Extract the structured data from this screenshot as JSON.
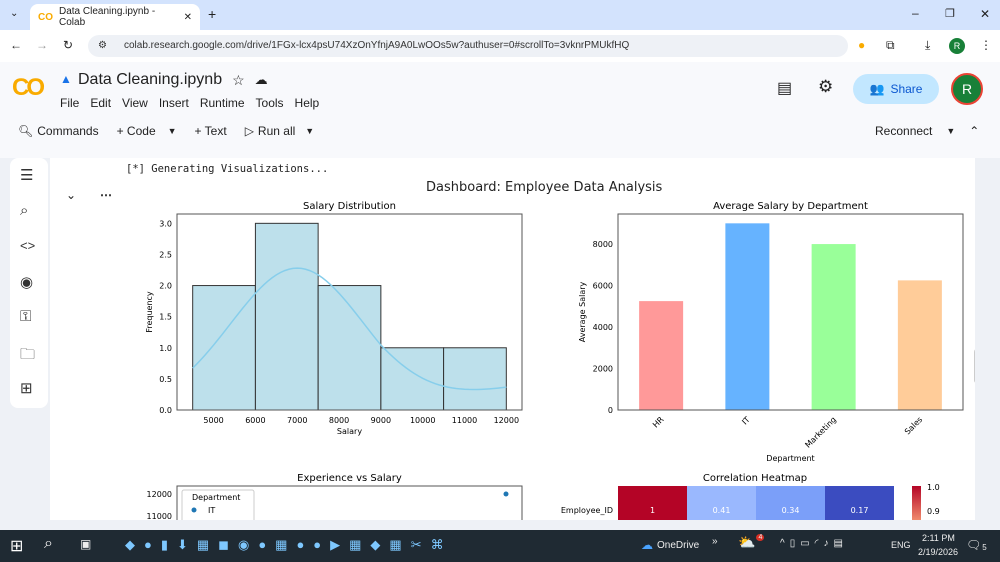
{
  "browser": {
    "tab_title": "Data Cleaning.ipynb - Colab",
    "url": "colab.research.google.com/drive/1FGx-lcx4psU74XzOnYfnjA9A0LwOOs5w?authuser=0#scrollTo=3vknrPMUkfHQ",
    "profile": "R"
  },
  "colab": {
    "notebook_title": "Data Cleaning.ipynb",
    "menu": [
      "File",
      "Edit",
      "View",
      "Insert",
      "Runtime",
      "Tools",
      "Help"
    ],
    "share": "Share",
    "avatar": "R",
    "toolbar": {
      "commands": "Commands",
      "code": "+ Code",
      "text": "+ Text",
      "run_all": "Run all",
      "reconnect": "Reconnect"
    },
    "sidebar_icons": [
      "toc-icon",
      "find-icon",
      "code-snippets-icon",
      "variables-icon",
      "secrets-key-icon",
      "files-folder-icon",
      "data-table-icon"
    ]
  },
  "output": {
    "log": "[*] Generating Visualizations...",
    "suptitle": "Dashboard: Employee Data Analysis"
  },
  "chart_data": [
    {
      "type": "bar",
      "subtype": "histogram",
      "title": "Salary Distribution",
      "xlabel": "Salary",
      "ylabel": "Frequency",
      "bins": [
        [
          4500,
          6000
        ],
        [
          6000,
          7500
        ],
        [
          7500,
          9000
        ],
        [
          9000,
          10500
        ],
        [
          10500,
          12000
        ]
      ],
      "values": [
        2,
        3,
        2,
        1,
        1
      ],
      "kde": true,
      "xticks": [
        5000,
        6000,
        7000,
        8000,
        9000,
        10000,
        11000,
        12000
      ],
      "yticks": [
        "0.0",
        "0.5",
        "1.0",
        "1.5",
        "2.0",
        "2.5",
        "3.0"
      ],
      "xlim": [
        4125,
        12375
      ],
      "ylim": [
        0,
        3.15
      ],
      "color": "#add8e6"
    },
    {
      "type": "bar",
      "title": "Average Salary by Department",
      "xlabel": "Department",
      "ylabel": "Average Salary",
      "categories": [
        "HR",
        "IT",
        "Marketing",
        "Sales"
      ],
      "values": [
        5250,
        9000,
        8000,
        6250
      ],
      "colors": [
        "#ff9999",
        "#66b3ff",
        "#99ff99",
        "#ffcc99"
      ],
      "yticks": [
        0,
        2000,
        4000,
        6000,
        8000
      ],
      "ylim": [
        0,
        9450
      ]
    },
    {
      "type": "scatter",
      "title": "Experience vs Salary",
      "legend_title": "Department",
      "legend": [
        "IT"
      ],
      "yticks": [
        12000,
        11000
      ],
      "points_visible": [
        {
          "y": 12000
        }
      ]
    },
    {
      "type": "heatmap",
      "title": "Correlation Heatmap",
      "rows": [
        "Employee_ID"
      ],
      "values": [
        [
          1,
          0.41,
          0.34,
          0.17
        ]
      ],
      "colorbar_ticks": [
        "1.0",
        "0.9"
      ]
    }
  ],
  "taskbar": {
    "onedrive": "OneDrive",
    "lang": "ENG",
    "time": "2:11 PM",
    "date": "2/19/2026",
    "notif": "5",
    "weather_badge": "4"
  }
}
